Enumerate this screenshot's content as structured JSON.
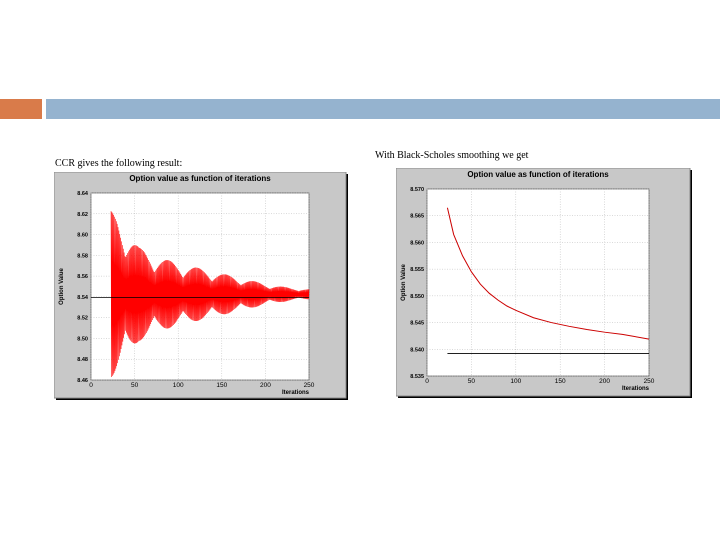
{
  "slide": {
    "accent_color": "#d97b4a",
    "bar_color": "#95b3cf"
  },
  "left": {
    "caption": "CCR gives the following result:"
  },
  "right": {
    "caption": "With Black-Scholes smoothing we get"
  },
  "chart_data": [
    {
      "type": "line",
      "title": "Option value  as function of iterations",
      "xlabel": "Iterations",
      "ylabel": "Option Value",
      "xlim": [
        0,
        250
      ],
      "ylim": [
        8.46,
        8.64
      ],
      "xticks": [
        "0",
        "50",
        "100",
        "150",
        "200",
        "250"
      ],
      "yticks": [
        "8.64",
        "8.62",
        "8.60",
        "8.58",
        "8.56",
        "8.54",
        "8.52",
        "8.50",
        "8.48",
        "8.46"
      ],
      "grid": true,
      "series": [
        {
          "color": "#ff0000",
          "style": "oscillating",
          "x_start": 23,
          "x_end": 250,
          "center": 8.5425,
          "envelope": [
            [
              23,
              0.08
            ],
            [
              30,
              0.075
            ],
            [
              55,
              0.045
            ],
            [
              80,
              0.035
            ],
            [
              100,
              0.03
            ],
            [
              140,
              0.022
            ],
            [
              180,
              0.014
            ],
            [
              200,
              0.01
            ],
            [
              230,
              0.006
            ],
            [
              250,
              0.005
            ]
          ]
        },
        {
          "color": "#000000",
          "style": "reference",
          "x": [
            0,
            250
          ],
          "y": [
            8.5395,
            8.5395
          ]
        }
      ]
    },
    {
      "type": "line",
      "title": "Option value as function of iterations",
      "xlabel": "Iterations",
      "ylabel": "Option Value",
      "xlim": [
        0,
        250
      ],
      "ylim": [
        8.535,
        8.57
      ],
      "xticks": [
        "0",
        "50",
        "100",
        "150",
        "200",
        "250"
      ],
      "yticks": [
        "8.570",
        "8.565",
        "8.560",
        "8.555",
        "8.550",
        "8.545",
        "8.540",
        "8.535"
      ],
      "grid": true,
      "series": [
        {
          "color": "#cc0000",
          "style": "line",
          "x": [
            23,
            30,
            40,
            50,
            60,
            70,
            80,
            90,
            100,
            120,
            140,
            160,
            180,
            200,
            220,
            250
          ],
          "y": [
            8.5665,
            8.5615,
            8.5575,
            8.5545,
            8.5522,
            8.5505,
            8.5492,
            8.5481,
            8.5473,
            8.5459,
            8.545,
            8.5443,
            8.5437,
            8.5432,
            8.5428,
            8.5419
          ]
        },
        {
          "color": "#000000",
          "style": "reference",
          "x": [
            23,
            250
          ],
          "y": [
            8.5392,
            8.5392
          ]
        }
      ]
    }
  ]
}
